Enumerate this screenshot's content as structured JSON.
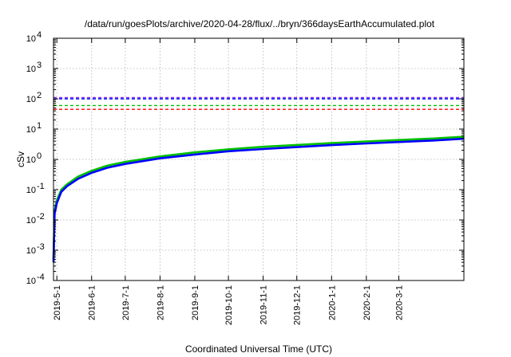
{
  "chart_data": {
    "type": "line",
    "title": "/data/run/goesPlots/archive/2020-04-28/flux/../bryn/366daysEarthAccumulated.plot",
    "xlabel": "Coordinated Universal Time (UTC)",
    "ylabel": "cSv",
    "yscale": "log",
    "ylim_exponents": [
      -4,
      4
    ],
    "y_tick_base": "10",
    "y_tick_exponents": [
      "-4",
      "-3",
      "-2",
      "-1",
      "0",
      "1",
      "2",
      "3",
      "4"
    ],
    "xlim": [
      "2019-04-28",
      "2020-04-28"
    ],
    "x_ticks": [
      {
        "date": "2019-05-01",
        "label": "2019-5-1"
      },
      {
        "date": "2019-06-01",
        "label": "2019-6-1"
      },
      {
        "date": "2019-07-01",
        "label": "2019-7-1"
      },
      {
        "date": "2019-08-01",
        "label": "2019-8-1"
      },
      {
        "date": "2019-09-01",
        "label": "2019-9-1"
      },
      {
        "date": "2019-10-01",
        "label": "2019-10-1"
      },
      {
        "date": "2019-11-01",
        "label": "2019-11-1"
      },
      {
        "date": "2019-12-01",
        "label": "2019-12-1"
      },
      {
        "date": "2020-01-01",
        "label": "2020-1-1"
      },
      {
        "date": "2020-02-01",
        "label": "2020-2-1"
      },
      {
        "date": "2020-03-01",
        "label": "2020-3-1"
      }
    ],
    "grid": true,
    "threshold_lines": [
      {
        "value": 110,
        "color": "#8a2be2",
        "style": "dashed"
      },
      {
        "value": 100,
        "color": "#0000ff",
        "style": "dashed"
      },
      {
        "value": 60,
        "color": "#00c000",
        "style": "dashed"
      },
      {
        "value": 45,
        "color": "#ff0000",
        "style": "dashed"
      }
    ],
    "series": [
      {
        "color": "#00c000",
        "x": [
          "2019-04-28",
          "2019-04-29",
          "2019-05-01",
          "2019-05-05",
          "2019-05-10",
          "2019-05-20",
          "2019-06-01",
          "2019-06-15",
          "2019-07-01",
          "2019-08-01",
          "2019-09-01",
          "2019-10-01",
          "2019-11-01",
          "2019-12-01",
          "2020-01-01",
          "2020-02-01",
          "2020-03-01",
          "2020-04-01",
          "2020-04-28"
        ],
        "values": [
          0.0005,
          0.02,
          0.045,
          0.1,
          0.15,
          0.27,
          0.42,
          0.62,
          0.83,
          1.25,
          1.7,
          2.15,
          2.6,
          3.0,
          3.45,
          3.9,
          4.35,
          4.9,
          5.6
        ]
      },
      {
        "color": "#0000ff",
        "x": [
          "2019-04-28",
          "2019-04-29",
          "2019-05-01",
          "2019-05-05",
          "2019-05-10",
          "2019-05-20",
          "2019-06-01",
          "2019-06-15",
          "2019-07-01",
          "2019-08-01",
          "2019-09-01",
          "2019-10-01",
          "2019-11-01",
          "2019-12-01",
          "2020-01-01",
          "2020-02-01",
          "2020-03-01",
          "2020-04-01",
          "2020-04-28"
        ],
        "values": [
          0.0004,
          0.016,
          0.036,
          0.085,
          0.13,
          0.23,
          0.36,
          0.53,
          0.71,
          1.08,
          1.45,
          1.85,
          2.2,
          2.55,
          2.95,
          3.35,
          3.75,
          4.2,
          4.8
        ]
      }
    ]
  }
}
